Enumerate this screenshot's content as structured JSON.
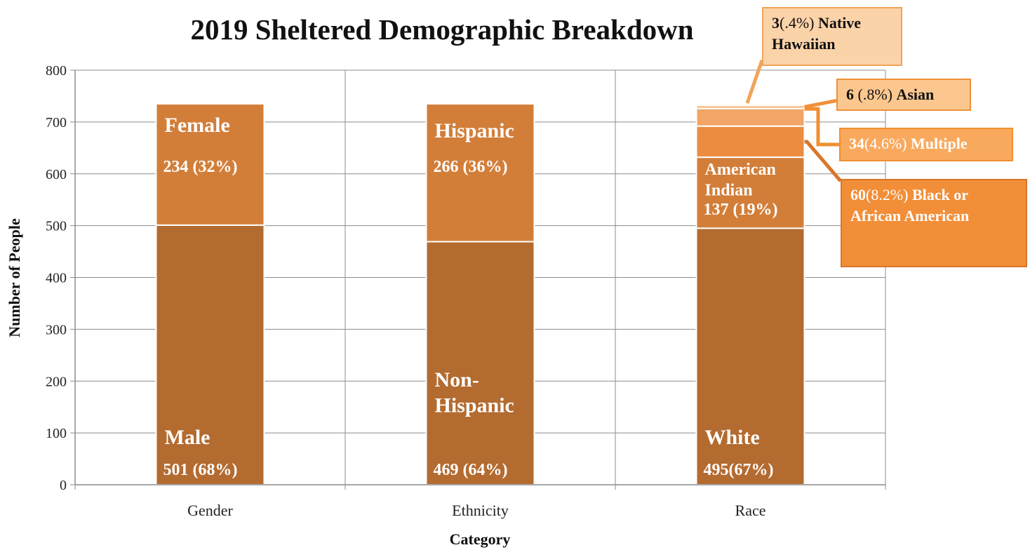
{
  "chart_data": {
    "type": "bar",
    "stacked": true,
    "title": "2019 Sheltered Demographic Breakdown",
    "xlabel": "Category",
    "ylabel": "Number of People",
    "ylim": [
      0,
      800
    ],
    "yticks": [
      "0",
      "100",
      "200",
      "300",
      "400",
      "500",
      "600",
      "700",
      "800"
    ],
    "grid": true,
    "categories": [
      "Gender",
      "Ethnicity",
      "Race"
    ],
    "bars": [
      {
        "category": "Gender",
        "segments": [
          {
            "label": "Male",
            "value": 501,
            "value_label": "501 (68%)",
            "color": "#b36b30"
          },
          {
            "label": "Female",
            "value": 234,
            "value_label": "234 (32%)",
            "color": "#d27e39"
          }
        ]
      },
      {
        "category": "Ethnicity",
        "segments": [
          {
            "label": "Non-Hispanic",
            "value": 469,
            "value_label": "469 (64%)",
            "color": "#b36b30"
          },
          {
            "label": "Hispanic",
            "value": 266,
            "value_label": "266 (36%)",
            "color": "#d27e39"
          }
        ]
      },
      {
        "category": "Race",
        "segments": [
          {
            "label": "White",
            "value": 495,
            "value_label": "495(67%)",
            "color": "#b36b30"
          },
          {
            "label": "American Indian",
            "value": 137,
            "value_label": "137 (19%)",
            "color": "#d27e39"
          },
          {
            "label": "Black or African American",
            "value": 60,
            "value_label": "",
            "color": "#ec8c40"
          },
          {
            "label": "Multiple",
            "value": 34,
            "value_label": "",
            "color": "#f2a566"
          },
          {
            "label": "Asian",
            "value": 6,
            "value_label": "",
            "color": "#f5b880"
          },
          {
            "label": "Native Hawaiian",
            "value": 3,
            "value_label": "",
            "color": "#f8cba0"
          }
        ]
      }
    ]
  },
  "callouts": {
    "native_hawaiian": {
      "num": "3",
      "pct": "(.4%)",
      "label": "Native Hawaiian"
    },
    "asian": {
      "num": "6",
      "pct": " (.8%) ",
      "label": "Asian"
    },
    "multiple": {
      "num": "34",
      "pct": "(4.6%)",
      "label": " Multiple"
    },
    "black": {
      "num": "60",
      "pct": "(8.2%)",
      "label": " Black or African American"
    }
  }
}
